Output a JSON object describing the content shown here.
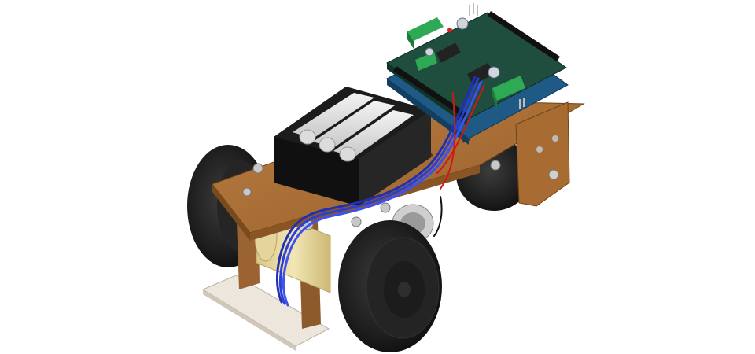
{
  "scene": {
    "description_type": "3d-render",
    "colors": {
      "background": "#ffffff",
      "wood_top": "#a9703a",
      "wood_dark": "#7a4a1f",
      "wood_light": "#c08446",
      "tire": "#1a1a1a",
      "tire_highlight": "#3a3a3a",
      "hub": "#2b2b2b",
      "battery_holder": "#1c1c1c",
      "battery_cell": "#e6e6e6",
      "board_blue": "#1f5a86",
      "board_green": "#1f4d3e",
      "terminal_green": "#2eaa55",
      "header_black": "#111111",
      "motor_yellow": "#e8d9a0",
      "ribbon_blue": "#2a3fd8",
      "ribbon_red": "#d01818",
      "base_plate": "#e8e2d8",
      "screw": "#b9b9b9"
    },
    "parts": [
      "chassis-plate",
      "battery-pack",
      "arduino-board",
      "motor-shield",
      "left-wheel",
      "right-wheel",
      "rear-wheel",
      "gear-motor",
      "ribbon-cable",
      "line-sensor-plate"
    ]
  }
}
